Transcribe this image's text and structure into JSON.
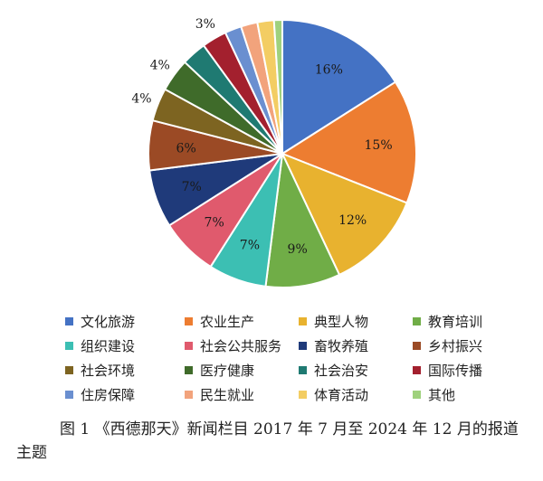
{
  "chart_data": {
    "type": "pie",
    "title": "",
    "slices": [
      {
        "name": "文化旅游",
        "value": 16,
        "label": "16%",
        "color": "#4472C4"
      },
      {
        "name": "农业生产",
        "value": 15,
        "label": "15%",
        "color": "#ED7D31"
      },
      {
        "name": "典型人物",
        "value": 12,
        "label": "12%",
        "color": "#E8B22F"
      },
      {
        "name": "教育培训",
        "value": 9,
        "label": "9%",
        "color": "#70AD47"
      },
      {
        "name": "组织建设",
        "value": 7,
        "label": "7%",
        "color": "#3CBFB3"
      },
      {
        "name": "社会公共服务",
        "value": 7,
        "label": "7%",
        "color": "#E05A6D"
      },
      {
        "name": "畜牧养殖",
        "value": 7,
        "label": "7%",
        "color": "#1F3A7A"
      },
      {
        "name": "乡村振兴",
        "value": 6,
        "label": "6%",
        "color": "#9B4A25"
      },
      {
        "name": "社会环境",
        "value": 4,
        "label": "4%",
        "color": "#7D6421"
      },
      {
        "name": "医疗健康",
        "value": 4,
        "label": "4%",
        "color": "#3F6B2A"
      },
      {
        "name": "社会治安",
        "value": 3,
        "label": "",
        "color": "#1F7A72"
      },
      {
        "name": "国际传播",
        "value": 3,
        "label": "3%",
        "color": "#A3202E"
      },
      {
        "name": "住房保障",
        "value": 2,
        "label": "",
        "color": "#6A8FD0"
      },
      {
        "name": "民生就业",
        "value": 2,
        "label": "",
        "color": "#F2A37C"
      },
      {
        "name": "体育活动",
        "value": 2,
        "label": "",
        "color": "#F3CD63"
      },
      {
        "name": "其他",
        "value": 1,
        "label": "",
        "color": "#9FD17D"
      }
    ],
    "legend_position": "bottom"
  },
  "caption": "图 1 《西德那天》新闻栏目 2017 年 7 月至 2024 年 12 月的报道主题"
}
